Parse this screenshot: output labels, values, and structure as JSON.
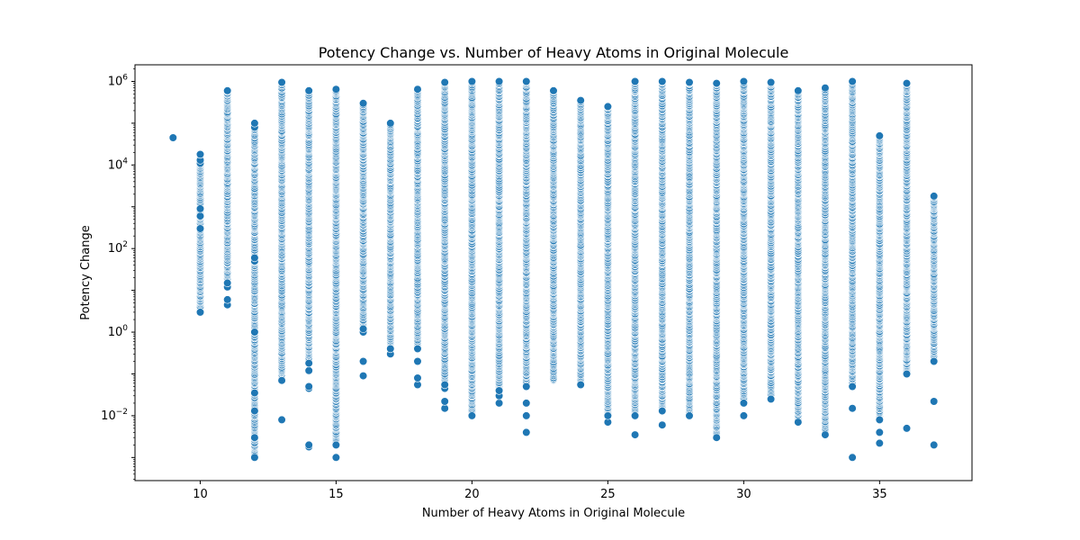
{
  "chart_data": {
    "type": "scatter",
    "title": "Potency Change vs. Number of Heavy Atoms in Original Molecule",
    "xlabel": "Number of Heavy Atoms in Original Molecule",
    "ylabel": "Potency Change",
    "xlim": [
      7.6,
      38.4
    ],
    "ylim": [
      0.00028,
      2500000
    ],
    "yscale": "log",
    "grid": false,
    "marker_color": "#1f77b4",
    "x_ticks": [
      10,
      15,
      20,
      25,
      30,
      35
    ],
    "y_ticks": [
      {
        "value": 0.01,
        "base": "10",
        "exp": "−2"
      },
      {
        "value": 1,
        "base": "10",
        "exp": "0"
      },
      {
        "value": 100,
        "base": "10",
        "exp": "2"
      },
      {
        "value": 10000,
        "base": "10",
        "exp": "4"
      },
      {
        "value": 1000000,
        "base": "10",
        "exp": "6"
      }
    ],
    "columns": [
      {
        "x": 9,
        "min": 45000,
        "max": 45000,
        "outliers": [
          45000
        ]
      },
      {
        "x": 10,
        "min": 3,
        "max": 18000,
        "outliers": [
          3,
          300,
          600,
          900,
          11000,
          13000,
          18000
        ]
      },
      {
        "x": 11,
        "min": 4.5,
        "max": 600000,
        "outliers": [
          4.5,
          6,
          12,
          15
        ]
      },
      {
        "x": 12,
        "min": 0.001,
        "max": 100000,
        "outliers": [
          0.001,
          0.003,
          0.013,
          0.035,
          1,
          50,
          60,
          80000,
          100000
        ]
      },
      {
        "x": 13,
        "min": 0.008,
        "max": 950000,
        "outliers": [
          0.008,
          0.07
        ]
      },
      {
        "x": 14,
        "min": 0.002,
        "max": 600000,
        "outliers": [
          0.0018,
          0.002,
          0.045,
          0.05,
          0.12,
          0.18
        ]
      },
      {
        "x": 15,
        "min": 0.001,
        "max": 650000,
        "outliers": [
          0.001,
          0.002
        ]
      },
      {
        "x": 16,
        "min": 0.09,
        "max": 300000,
        "outliers": [
          0.09,
          0.2,
          1,
          1.2
        ]
      },
      {
        "x": 17,
        "min": 0.3,
        "max": 100000,
        "outliers": [
          0.3,
          0.4
        ]
      },
      {
        "x": 18,
        "min": 0.055,
        "max": 650000,
        "outliers": [
          0.055,
          0.08,
          0.2,
          0.4
        ]
      },
      {
        "x": 19,
        "min": 0.015,
        "max": 950000,
        "outliers": [
          0.015,
          0.022,
          0.045,
          0.055
        ]
      },
      {
        "x": 20,
        "min": 0.01,
        "max": 1000000,
        "outliers": [
          0.01
        ]
      },
      {
        "x": 21,
        "min": 0.02,
        "max": 1000000,
        "outliers": [
          0.02,
          0.03,
          0.04
        ]
      },
      {
        "x": 22,
        "min": 0.004,
        "max": 1000000,
        "outliers": [
          0.004,
          0.01,
          0.02,
          0.05
        ]
      },
      {
        "x": 23,
        "min": 0.07,
        "max": 600000,
        "outliers": []
      },
      {
        "x": 24,
        "min": 0.055,
        "max": 350000,
        "outliers": [
          0.055
        ]
      },
      {
        "x": 25,
        "min": 0.007,
        "max": 250000,
        "outliers": [
          0.007,
          0.01
        ]
      },
      {
        "x": 26,
        "min": 0.0035,
        "max": 1000000,
        "outliers": [
          0.0035,
          0.01
        ]
      },
      {
        "x": 27,
        "min": 0.006,
        "max": 1000000,
        "outliers": [
          0.006,
          0.013
        ]
      },
      {
        "x": 28,
        "min": 0.01,
        "max": 950000,
        "outliers": [
          0.01
        ]
      },
      {
        "x": 29,
        "min": 0.003,
        "max": 900000,
        "outliers": [
          0.003
        ]
      },
      {
        "x": 30,
        "min": 0.01,
        "max": 1000000,
        "outliers": [
          0.01,
          0.02
        ]
      },
      {
        "x": 31,
        "min": 0.025,
        "max": 950000,
        "outliers": [
          0.025
        ]
      },
      {
        "x": 32,
        "min": 0.007,
        "max": 600000,
        "outliers": [
          0.007
        ]
      },
      {
        "x": 33,
        "min": 0.0035,
        "max": 700000,
        "outliers": [
          0.0035
        ]
      },
      {
        "x": 34,
        "min": 0.001,
        "max": 1000000,
        "outliers": [
          0.001,
          0.015,
          0.05
        ]
      },
      {
        "x": 35,
        "min": 0.0022,
        "max": 50000,
        "outliers": [
          0.0022,
          0.004,
          0.008
        ]
      },
      {
        "x": 36,
        "min": 0.005,
        "max": 900000,
        "outliers": [
          0.005,
          0.1
        ]
      },
      {
        "x": 37,
        "min": 0.002,
        "max": 1800,
        "outliers": [
          0.002,
          0.022,
          0.2
        ]
      }
    ]
  }
}
